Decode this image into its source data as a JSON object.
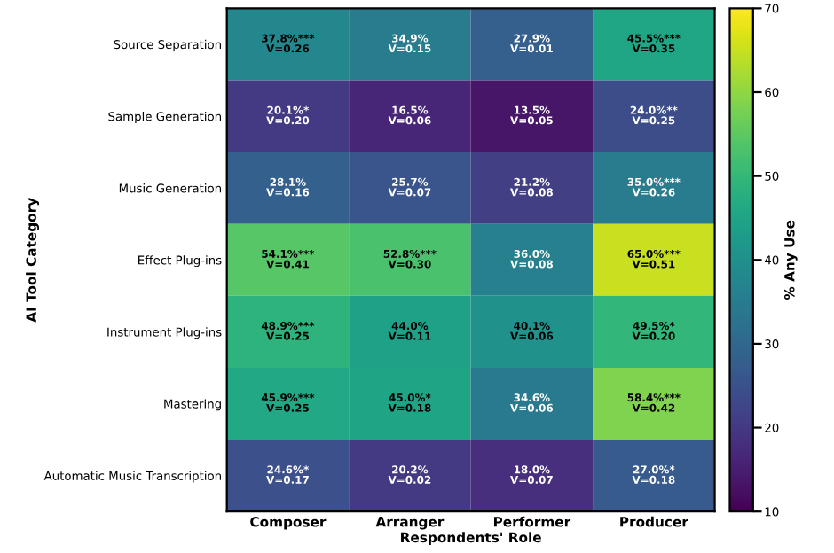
{
  "chart_data": {
    "type": "heatmap",
    "xlabel": "Respondents' Role",
    "ylabel": "AI Tool Category",
    "clabel": "% Any Use",
    "categories": [
      "Composer",
      "Arranger",
      "Performer",
      "Producer"
    ],
    "y_categories": [
      "Source Separation",
      "Sample Generation",
      "Music Generation",
      "Effect Plug-ins",
      "Instrument Plug-ins",
      "Mastering",
      "Automatic Music Transcription"
    ],
    "cells": [
      [
        37.8,
        34.9,
        27.9,
        45.5
      ],
      [
        20.1,
        16.5,
        13.5,
        24.0
      ],
      [
        28.1,
        25.7,
        21.2,
        35.0
      ],
      [
        54.1,
        52.8,
        36.0,
        65.0
      ],
      [
        48.9,
        44.0,
        40.1,
        49.5
      ],
      [
        45.9,
        45.0,
        34.6,
        58.4
      ],
      [
        24.6,
        20.2,
        18.0,
        27.0
      ]
    ],
    "cell_labels": [
      [
        "37.8%***\nV=0.26",
        "34.9%\nV=0.15",
        "27.9%\nV=0.01",
        "45.5%***\nV=0.35"
      ],
      [
        "20.1%*\nV=0.20",
        "16.5%\nV=0.06",
        "13.5%\nV=0.05",
        "24.0%**\nV=0.25"
      ],
      [
        "28.1%\nV=0.16",
        "25.7%\nV=0.07",
        "21.2%\nV=0.08",
        "35.0%***\nV=0.26"
      ],
      [
        "54.1%***\nV=0.41",
        "52.8%***\nV=0.30",
        "36.0%\nV=0.08",
        "65.0%***\nV=0.51"
      ],
      [
        "48.9%***\nV=0.25",
        "44.0%\nV=0.11",
        "40.1%\nV=0.06",
        "49.5%*\nV=0.20"
      ],
      [
        "45.9%***\nV=0.25",
        "45.0%*\nV=0.18",
        "34.6%\nV=0.06",
        "58.4%***\nV=0.42"
      ],
      [
        "24.6%*\nV=0.17",
        "20.2%\nV=0.02",
        "18.0%\nV=0.07",
        "27.0%*\nV=0.18"
      ]
    ],
    "clim": [
      10,
      70
    ],
    "cticks": [
      10,
      20,
      30,
      40,
      50,
      60,
      70
    ]
  }
}
